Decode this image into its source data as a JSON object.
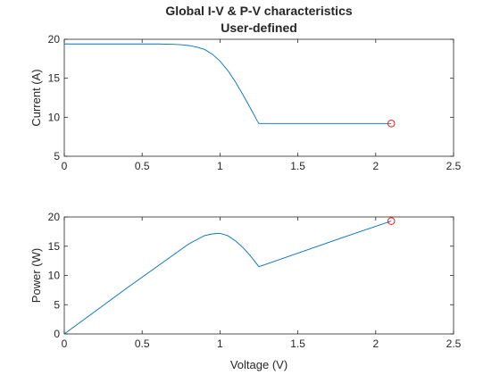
{
  "title": "Global I-V & P-V characteristics",
  "subtitle": "User-defined",
  "colors": {
    "curve": "#0072BD",
    "marker": "#FF0000",
    "axis": "#262626"
  },
  "chart_data": [
    {
      "type": "line",
      "xlabel": "",
      "ylabel": "Current (A)",
      "xlim": [
        0,
        2.5
      ],
      "ylim": [
        5,
        20
      ],
      "xticks": [
        0,
        0.5,
        1,
        1.5,
        2,
        2.5
      ],
      "yticks": [
        5,
        10,
        15,
        20
      ],
      "xtick_labels": [
        "0",
        "0.5",
        "1",
        "1.5",
        "2",
        "2.5"
      ],
      "ytick_labels": [
        "5",
        "10",
        "15",
        "20"
      ],
      "grid": false,
      "series": [
        {
          "x": [
            0,
            0.3,
            0.5,
            0.6,
            0.7,
            0.75,
            0.8,
            0.85,
            0.9,
            0.95,
            1.0,
            1.05,
            1.1,
            1.15,
            1.2,
            1.24,
            1.25,
            1.5,
            1.8,
            2.1
          ],
          "y": [
            19.4,
            19.4,
            19.4,
            19.4,
            19.35,
            19.3,
            19.2,
            19.0,
            18.7,
            18.1,
            17.2,
            16.0,
            14.5,
            12.8,
            11.0,
            9.5,
            9.2,
            9.2,
            9.2,
            9.2
          ]
        }
      ],
      "marker": {
        "x": 2.1,
        "y": 9.2,
        "shape": "circle"
      }
    },
    {
      "type": "line",
      "xlabel": "Voltage (V)",
      "ylabel": "Power (W)",
      "xlim": [
        0,
        2.5
      ],
      "ylim": [
        0,
        20
      ],
      "xticks": [
        0,
        0.5,
        1,
        1.5,
        2,
        2.5
      ],
      "yticks": [
        0,
        5,
        10,
        15,
        20
      ],
      "xtick_labels": [
        "0",
        "0.5",
        "1",
        "1.5",
        "2",
        "2.5"
      ],
      "ytick_labels": [
        "0",
        "5",
        "10",
        "15",
        "20"
      ],
      "grid": false,
      "series": [
        {
          "x": [
            0,
            0.2,
            0.4,
            0.6,
            0.8,
            0.9,
            0.95,
            1.0,
            1.05,
            1.1,
            1.15,
            1.2,
            1.25,
            1.5,
            1.8,
            2.1
          ],
          "y": [
            0,
            3.9,
            7.8,
            11.6,
            15.4,
            16.8,
            17.1,
            17.2,
            16.8,
            15.9,
            14.7,
            13.2,
            11.5,
            13.8,
            16.6,
            19.3
          ]
        }
      ],
      "marker": {
        "x": 2.1,
        "y": 19.3,
        "shape": "circle"
      }
    }
  ]
}
